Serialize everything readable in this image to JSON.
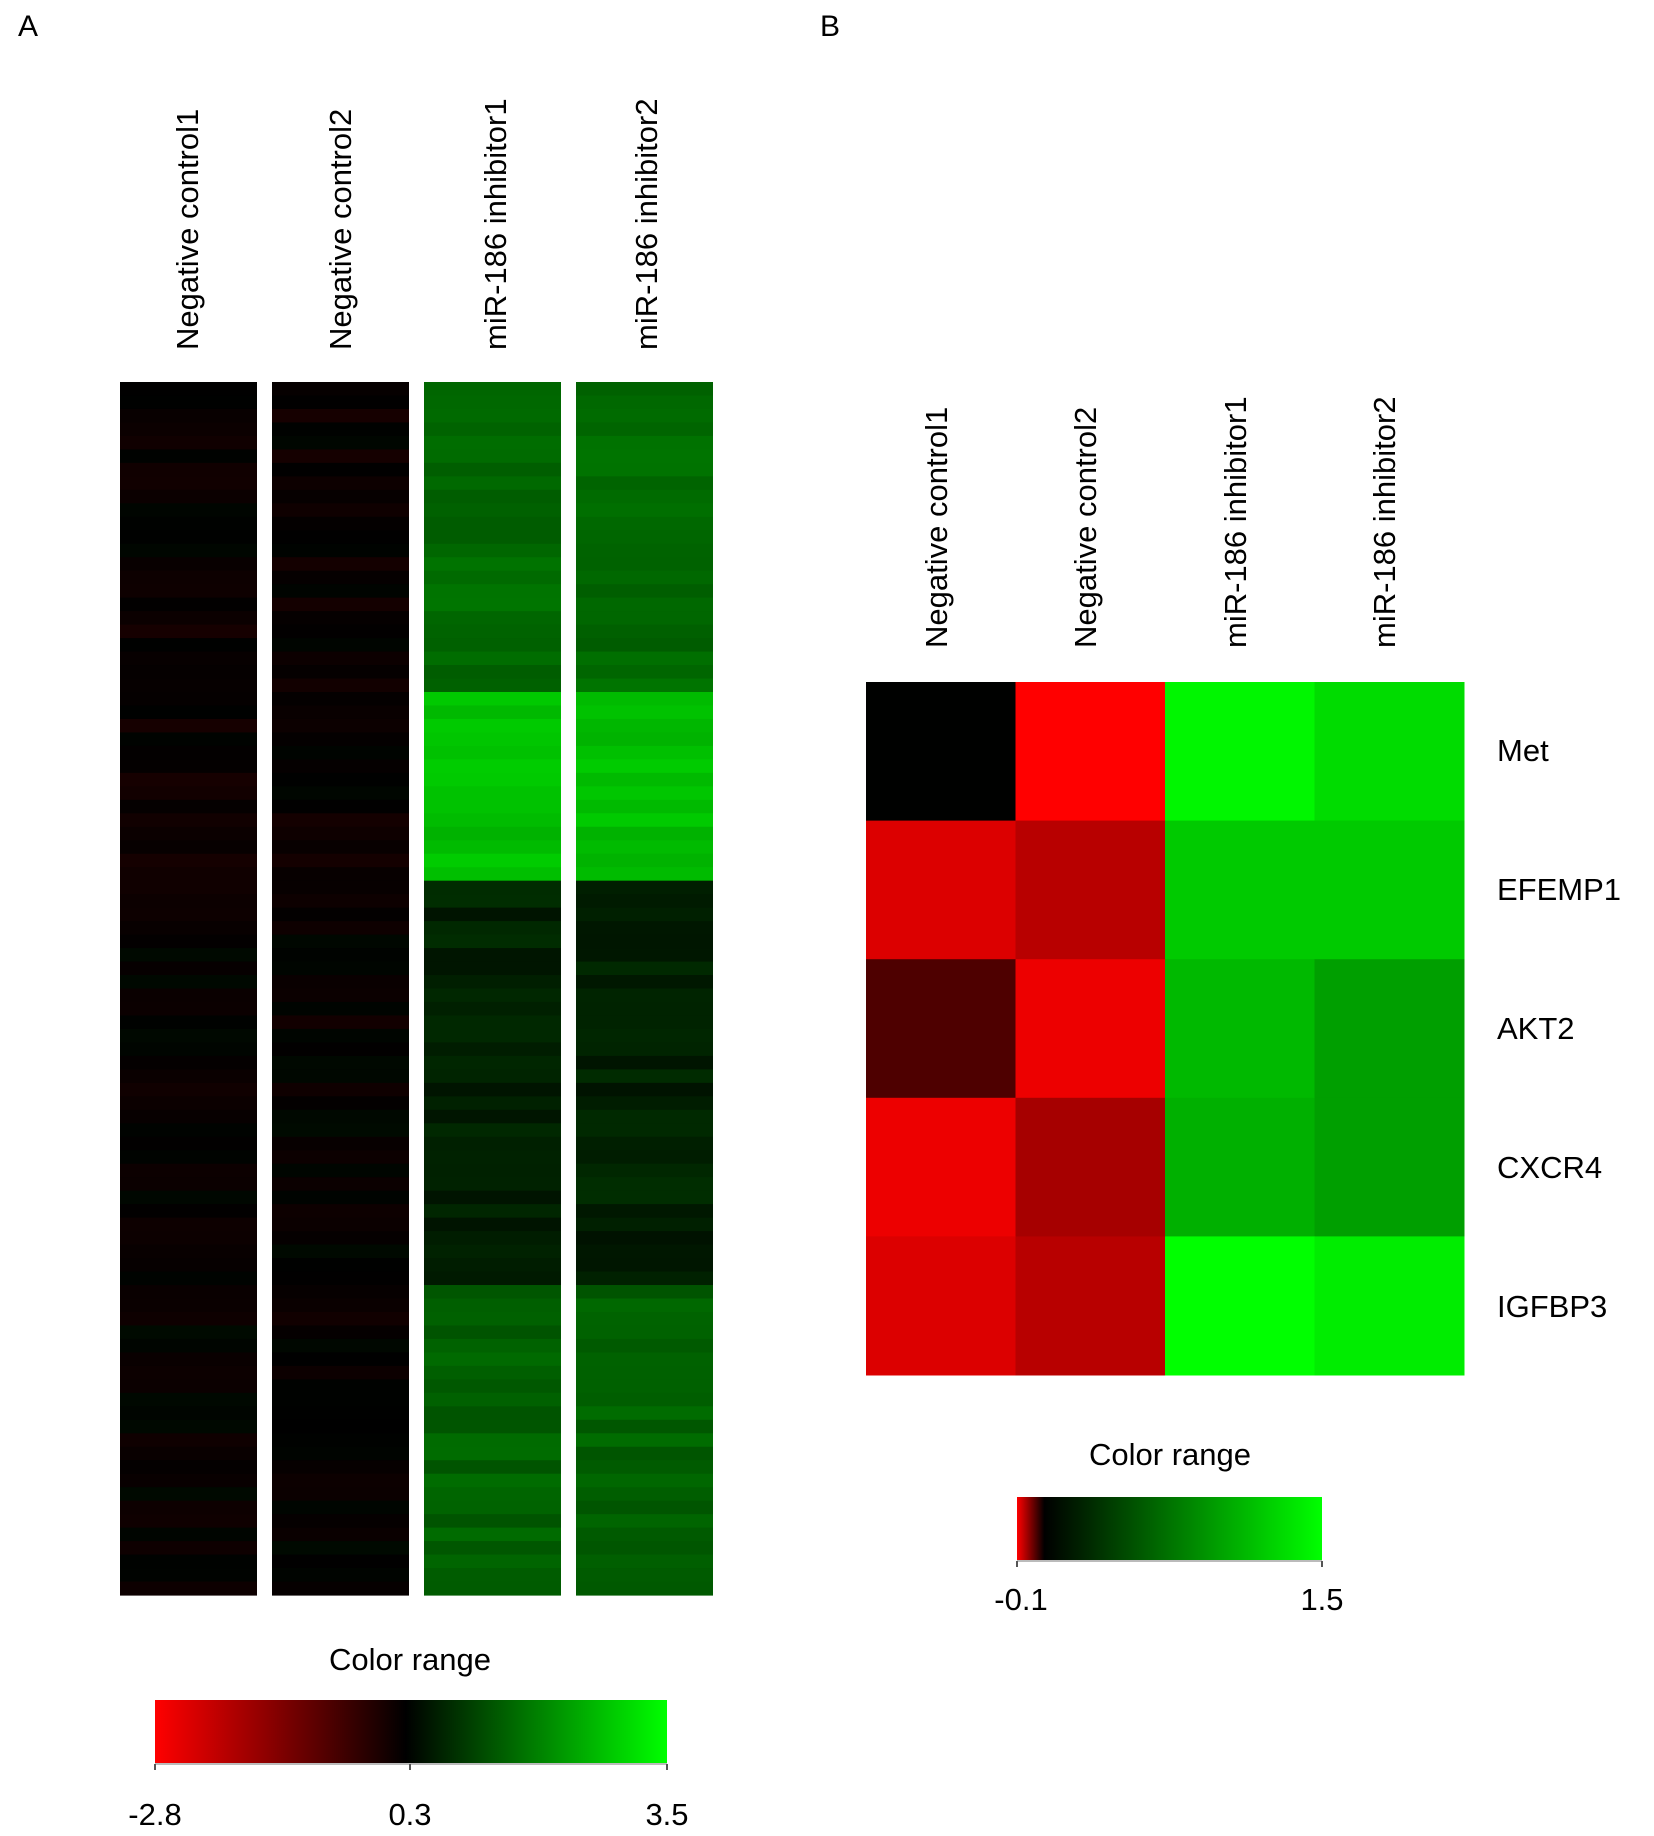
{
  "chart_data": [
    {
      "type": "heatmap",
      "panel": "A",
      "columns": [
        "Negative control1",
        "Negative control2",
        "miR-186 inhibitor1",
        "miR-186 inhibitor2"
      ],
      "row_count": 90,
      "cluster_groups": [
        {
          "rows": 23,
          "negative_control_value": 0.0,
          "inhibitor_value": 1.6
        },
        {
          "rows": 14,
          "negative_control_value": 0.0,
          "inhibitor_value": 2.7
        },
        {
          "rows": 30,
          "negative_control_value": 0.05,
          "inhibitor_value": 0.7
        },
        {
          "rows": 23,
          "negative_control_value": 0.05,
          "inhibitor_value": 1.5
        }
      ],
      "legend": {
        "title": "Color range",
        "min": -2.8,
        "mid": 0.3,
        "max": 3.5,
        "ticks": [
          "-2.8",
          "0.3",
          "3.5"
        ],
        "low_color": "#ff0000",
        "mid_color": "#000000",
        "high_color": "#00ff00"
      }
    },
    {
      "type": "heatmap",
      "panel": "B",
      "columns": [
        "Negative control1",
        "Negative control2",
        "miR-186 inhibitor1",
        "miR-186 inhibitor2"
      ],
      "rows": [
        "Met",
        "EFEMP1",
        "AKT2",
        "CXCR4",
        "IGFBP3"
      ],
      "values": [
        [
          0.05,
          -0.1,
          1.45,
          1.3
        ],
        [
          -0.08,
          -0.06,
          1.2,
          1.2
        ],
        [
          0.0,
          -0.09,
          1.1,
          0.95
        ],
        [
          -0.09,
          -0.05,
          1.05,
          0.95
        ],
        [
          -0.08,
          -0.06,
          1.5,
          1.4
        ]
      ],
      "legend": {
        "title": "Color range",
        "min": -0.1,
        "max": 1.5,
        "ticks": [
          "-0.1",
          "1.5"
        ],
        "low_color": "#ff0000",
        "mid_color": "#000000",
        "high_color": "#00ff00"
      }
    }
  ],
  "panel_labels": [
    "A",
    "B"
  ]
}
